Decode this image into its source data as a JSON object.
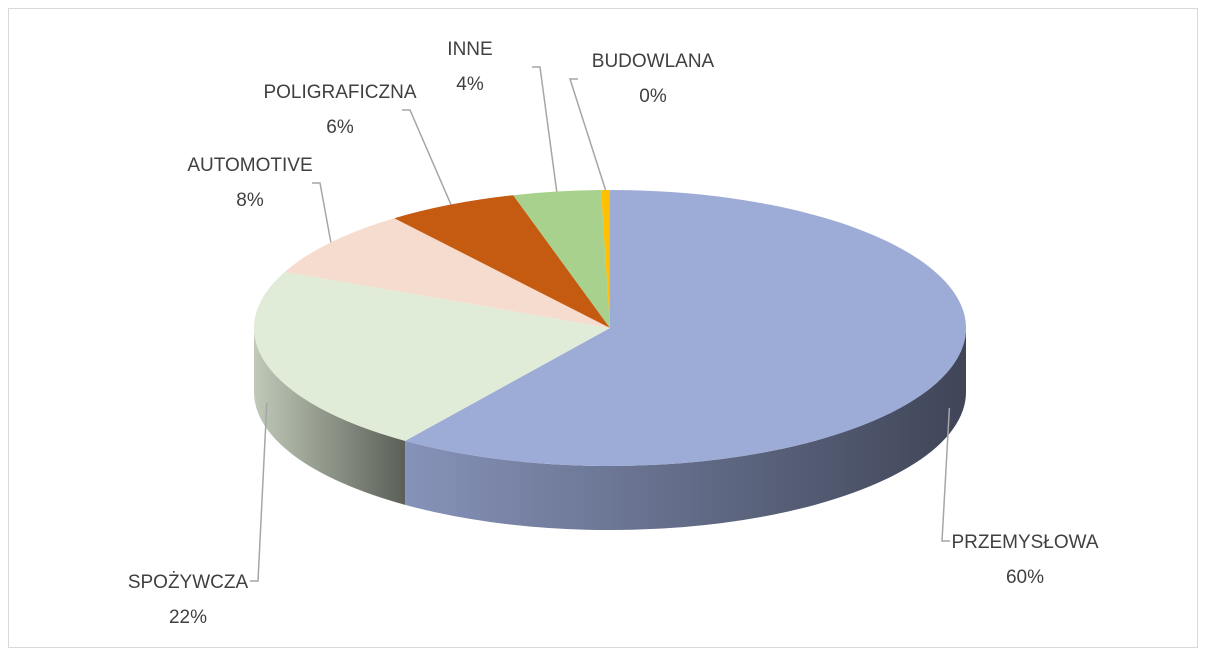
{
  "chart_data": {
    "type": "pie3d",
    "categories": [
      "PRZEMYSŁOWA",
      "SPOŻYWCZA",
      "AUTOMOTIVE",
      "POLIGRAFICZNA",
      "INNE",
      "BUDOWLANA"
    ],
    "values": [
      60,
      22,
      8,
      6,
      4,
      0.4
    ],
    "value_labels": [
      "60%",
      "22%",
      "8%",
      "6%",
      "4%",
      "0%"
    ],
    "colors": [
      "#9dabd7",
      "#e0ecd8",
      "#f6dccf",
      "#c55a11",
      "#a9d18e",
      "#ffc000"
    ]
  }
}
